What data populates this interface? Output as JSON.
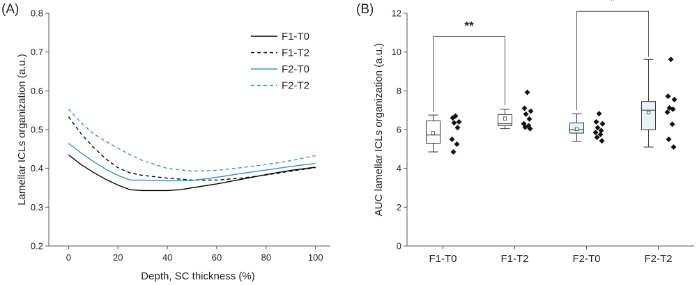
{
  "chart_data": [
    {
      "panel": "(A)",
      "type": "line",
      "xlabel": "Depth, SC thickness (%)",
      "ylabel": "Lamellar ICLs organization (a.u.)",
      "xlim": [
        -8,
        106
      ],
      "ylim": [
        0.2,
        0.8
      ],
      "xticks": [
        "0",
        "20",
        "40",
        "60",
        "80",
        "100"
      ],
      "yticks": [
        "0.2",
        "0.3",
        "0.4",
        "0.5",
        "0.6",
        "0.7",
        "0.8"
      ],
      "grid": false,
      "legend_position": "top-right",
      "series": [
        {
          "name": "F1-T0",
          "color": "#000000",
          "dash": "solid",
          "x": [
            0,
            5,
            10,
            15,
            20,
            25,
            30,
            40,
            45,
            50,
            60,
            70,
            80,
            90,
            100
          ],
          "y": [
            0.435,
            0.41,
            0.39,
            0.372,
            0.357,
            0.345,
            0.343,
            0.343,
            0.345,
            0.35,
            0.36,
            0.372,
            0.384,
            0.395,
            0.403
          ]
        },
        {
          "name": "F1-T2",
          "color": "#000000",
          "dash": "dashed",
          "x": [
            0,
            5,
            10,
            15,
            20,
            25,
            30,
            40,
            50,
            60,
            70,
            80,
            90,
            100
          ],
          "y": [
            0.533,
            0.49,
            0.455,
            0.425,
            0.402,
            0.388,
            0.382,
            0.375,
            0.37,
            0.37,
            0.375,
            0.383,
            0.393,
            0.402
          ]
        },
        {
          "name": "F2-T0",
          "color": "#3a8fc6",
          "dash": "solid",
          "x": [
            0,
            5,
            10,
            15,
            20,
            25,
            30,
            40,
            50,
            60,
            70,
            80,
            90,
            100
          ],
          "y": [
            0.465,
            0.44,
            0.418,
            0.398,
            0.382,
            0.37,
            0.37,
            0.368,
            0.369,
            0.377,
            0.387,
            0.396,
            0.405,
            0.413
          ]
        },
        {
          "name": "F2-T2",
          "color": "#3a8fc6",
          "dash": "dashed",
          "x": [
            0,
            5,
            10,
            15,
            20,
            25,
            30,
            40,
            50,
            60,
            70,
            80,
            90,
            100
          ],
          "y": [
            0.553,
            0.518,
            0.49,
            0.47,
            0.452,
            0.435,
            0.42,
            0.4,
            0.393,
            0.395,
            0.402,
            0.41,
            0.42,
            0.433
          ]
        }
      ]
    },
    {
      "panel": "(B)",
      "type": "box",
      "ylabel": "AUC lamellar ICLs organization (a.u.)",
      "ylim": [
        0,
        12
      ],
      "yticks": [
        "0",
        "2",
        "4",
        "6",
        "8",
        "10",
        "12"
      ],
      "categories": [
        "F1-T0",
        "F1-T2",
        "F2-T0",
        "F2-T2"
      ],
      "grid": false,
      "groups": [
        {
          "name": "F1-T0",
          "fill": "#ffffff",
          "min": 4.85,
          "q1": 5.3,
          "median": 5.72,
          "q3": 6.45,
          "max": 6.75,
          "mean": 5.82,
          "points": [
            6.7,
            6.6,
            6.4,
            6.35,
            6.1,
            5.5,
            5.25,
            4.85
          ]
        },
        {
          "name": "F1-T2",
          "fill": "#ffffff",
          "min": 6.05,
          "q1": 6.2,
          "median": 6.3,
          "q3": 6.78,
          "max": 7.05,
          "mean": 6.57,
          "points": [
            7.92,
            7.1,
            6.95,
            6.8,
            6.55,
            6.3,
            6.2,
            6.12,
            6.05
          ]
        },
        {
          "name": "F2-T0",
          "fill": "#e9f3f7",
          "min": 5.4,
          "q1": 5.82,
          "median": 6.0,
          "q3": 6.35,
          "max": 6.82,
          "mean": 6.02,
          "points": [
            6.82,
            6.4,
            6.3,
            6.1,
            5.95,
            5.85,
            5.75,
            5.6,
            5.42
          ]
        },
        {
          "name": "F2-T2",
          "fill": "#e9f3f7",
          "min": 5.1,
          "q1": 6.0,
          "median": 7.0,
          "q3": 7.45,
          "max": 9.62,
          "mean": 6.88,
          "points": [
            9.62,
            7.72,
            7.55,
            7.12,
            7.05,
            6.9,
            6.28,
            5.5,
            5.1
          ]
        }
      ],
      "significance": [
        {
          "from": "F1-T0",
          "to": "F1-T2",
          "label": "**",
          "y": 11.4
        },
        {
          "from": "F2-T0",
          "to": "F2-T2",
          "label": "*",
          "y": 12.9
        }
      ]
    }
  ]
}
